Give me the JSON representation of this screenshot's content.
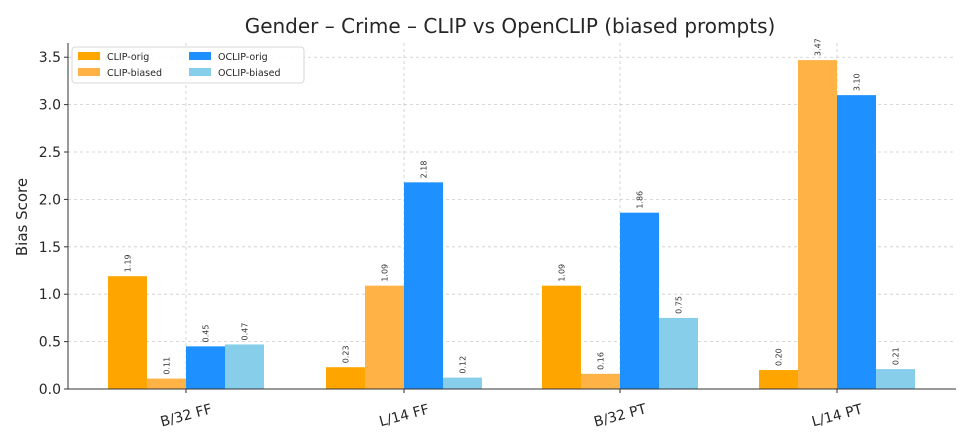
{
  "chart_data": {
    "type": "bar",
    "title": "Gender – Crime – CLIP vs OpenCLIP (biased prompts)",
    "xlabel": "",
    "ylabel": "Bias Score",
    "categories": [
      "B/32 FF",
      "L/14 FF",
      "B/32 PT",
      "L/14 PT"
    ],
    "ylim": [
      0,
      3.65
    ],
    "yticks": [
      "0.0",
      "0.5",
      "1.0",
      "1.5",
      "2.0",
      "2.5",
      "3.0",
      "3.5"
    ],
    "grid": true,
    "legend_position": "top-left",
    "series": [
      {
        "name": "CLIP-orig",
        "color": "#FFA500",
        "values": [
          1.19,
          0.23,
          1.09,
          0.2
        ],
        "labels": [
          "1.19",
          "0.23",
          "1.09",
          "0.20"
        ]
      },
      {
        "name": "CLIP-biased",
        "color": "#FFB347",
        "values": [
          0.11,
          1.09,
          0.16,
          3.47
        ],
        "labels": [
          "0.11",
          "1.09",
          "0.16",
          "3.47"
        ]
      },
      {
        "name": "OCLIP-orig",
        "color": "#1E90FF",
        "values": [
          0.45,
          2.18,
          1.86,
          3.1
        ],
        "labels": [
          "0.45",
          "2.18",
          "1.86",
          "3.10"
        ]
      },
      {
        "name": "OCLIP-biased",
        "color": "#87CEEB",
        "values": [
          0.47,
          0.12,
          0.75,
          0.21
        ],
        "labels": [
          "0.47",
          "0.12",
          "0.75",
          "0.21"
        ]
      }
    ]
  }
}
